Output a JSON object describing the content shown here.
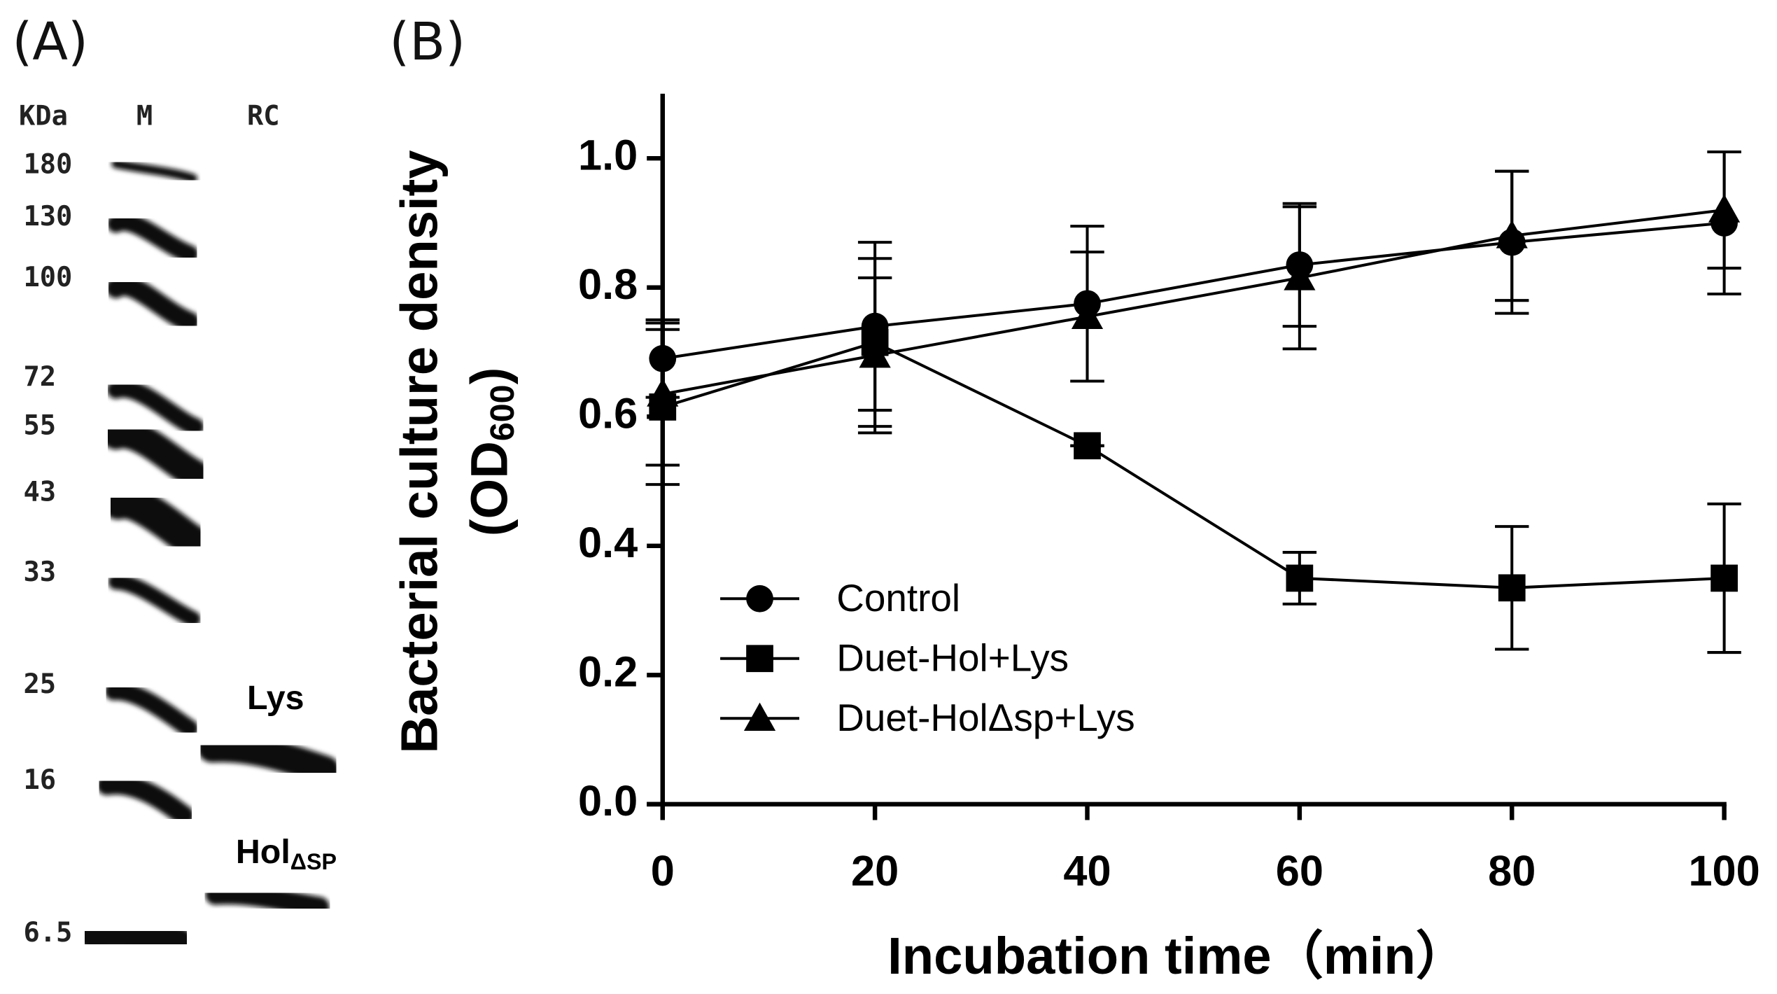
{
  "panel_a": {
    "label": "(A)",
    "header": {
      "unit": "KDa",
      "lane_m": "M",
      "lane_rc": "RC"
    },
    "markers": [
      "180",
      "130",
      "100",
      "72",
      "55",
      "43",
      "33",
      "25",
      "16",
      "6.5"
    ],
    "band_lys": "Lys",
    "band_hol": {
      "base": "Hol",
      "sub": "ΔSP"
    }
  },
  "chart_data": {
    "type": "line",
    "panel_label": "(B)",
    "xlabel": "Incubation time（min）",
    "ylabel": {
      "line1": "Bacterial culture density",
      "line2_start": "(OD",
      "line2_sub": "600",
      "line2_end": ")"
    },
    "x": [
      0,
      20,
      40,
      60,
      80,
      100
    ],
    "xlim": [
      0,
      100
    ],
    "xticks": [
      0,
      20,
      40,
      60,
      80,
      100
    ],
    "ylim": [
      0,
      1.1
    ],
    "yticks": [
      {
        "value": 0,
        "label": "0.0"
      },
      0.2,
      0.4,
      0.6,
      0.8,
      {
        "value": 1,
        "label": "1.0"
      }
    ],
    "legend": "lower left",
    "series": [
      {
        "name": "Control",
        "color": "#000000",
        "marker": "circle",
        "values": [
          0.69,
          0.74,
          0.775,
          0.835,
          0.87,
          0.9
        ],
        "errors": [
          0.06,
          0.13,
          0.12,
          0.095,
          0.11,
          0.11
        ]
      },
      {
        "name": "Duet-Hol+Lys",
        "color": "#000000",
        "marker": "square",
        "values": [
          0.615,
          0.715,
          0.555,
          0.35,
          0.335,
          0.35
        ],
        "errors": [
          0.12,
          0.13,
          0.0,
          0.04,
          0.095,
          0.115
        ]
      },
      {
        "name": "Duet-HolΔsp+Lys",
        "color": "#000000",
        "marker": "triangle",
        "values": [
          0.635,
          0.695,
          0.755,
          0.815,
          0.88,
          0.92
        ],
        "errors": [
          0.11,
          0.12,
          0.1,
          0.11,
          0.1,
          0.09
        ]
      }
    ]
  }
}
